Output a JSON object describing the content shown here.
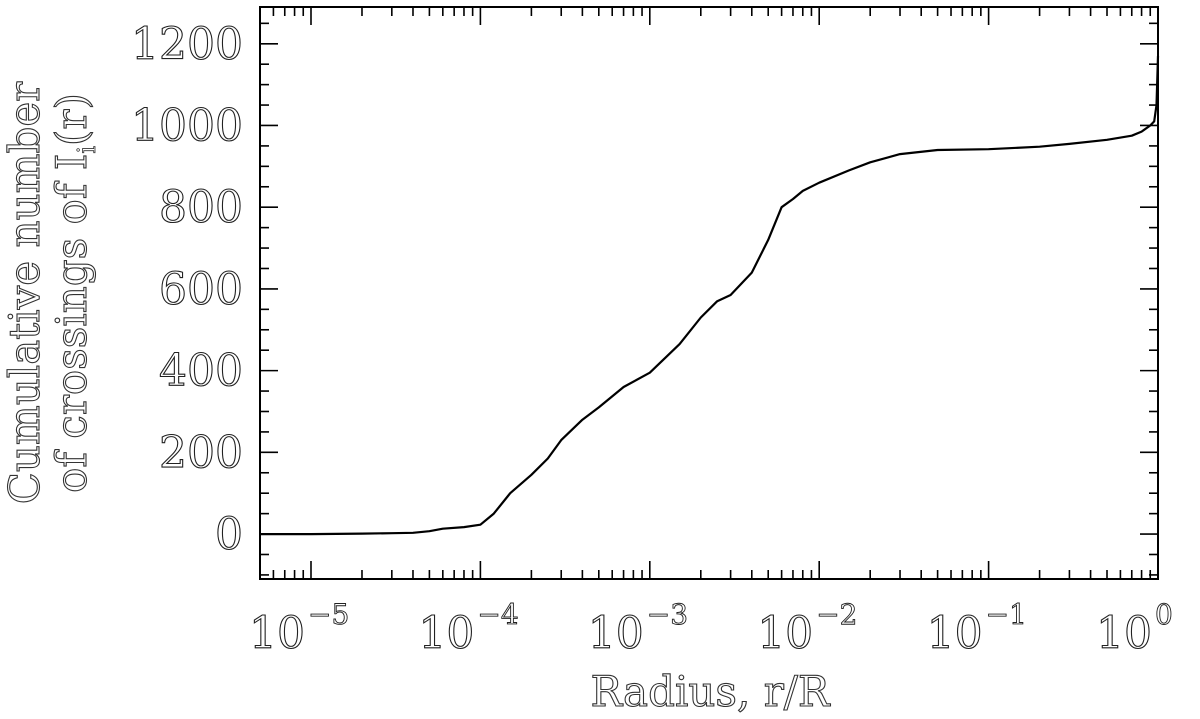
{
  "chart_data": {
    "type": "line",
    "xscale": "log",
    "xlim": [
      5e-06,
      1
    ],
    "ylim": [
      -110,
      1290
    ],
    "grid": false,
    "xlabel": "Radius, r/R",
    "ylabel": {
      "line1": "Cumulative number",
      "line2_prefix": "of crossings of I",
      "line2_subscript": "i",
      "line2_suffix": "(r)"
    },
    "x_ticks": [
      {
        "value": 1e-05,
        "base": "10",
        "exp": "−5"
      },
      {
        "value": 0.0001,
        "base": "10",
        "exp": "−4"
      },
      {
        "value": 0.001,
        "base": "10",
        "exp": "−3"
      },
      {
        "value": 0.01,
        "base": "10",
        "exp": "−2"
      },
      {
        "value": 0.1,
        "base": "10",
        "exp": "−1"
      },
      {
        "value": 1,
        "base": "10",
        "exp": "0"
      }
    ],
    "y_ticks": [
      {
        "value": 0,
        "label": "0"
      },
      {
        "value": 200,
        "label": "200"
      },
      {
        "value": 400,
        "label": "400"
      },
      {
        "value": 600,
        "label": "600"
      },
      {
        "value": 800,
        "label": "800"
      },
      {
        "value": 1000,
        "label": "1000"
      },
      {
        "value": 1200,
        "label": "1200"
      }
    ],
    "series": [
      {
        "x": [
          5e-06,
          1e-05,
          2e-05,
          3e-05,
          4e-05,
          5e-05,
          6e-05,
          8e-05,
          0.0001,
          0.00012,
          0.00015,
          0.0002,
          0.00025,
          0.0003,
          0.0004,
          0.0005,
          0.0007,
          0.001,
          0.0015,
          0.002,
          0.0025,
          0.003,
          0.004,
          0.005,
          0.006,
          0.007,
          0.008,
          0.01,
          0.015,
          0.02,
          0.03,
          0.05,
          0.1,
          0.2,
          0.3,
          0.5,
          0.7,
          0.8,
          0.9,
          0.95,
          0.98,
          1.0
        ],
        "y": [
          0,
          0,
          1,
          2,
          3,
          7,
          13,
          17,
          23,
          50,
          100,
          145,
          185,
          230,
          280,
          310,
          360,
          395,
          465,
          530,
          570,
          585,
          640,
          720,
          800,
          820,
          840,
          860,
          890,
          910,
          930,
          940,
          942,
          948,
          955,
          965,
          975,
          985,
          1000,
          1010,
          1050,
          1170
        ]
      }
    ]
  }
}
